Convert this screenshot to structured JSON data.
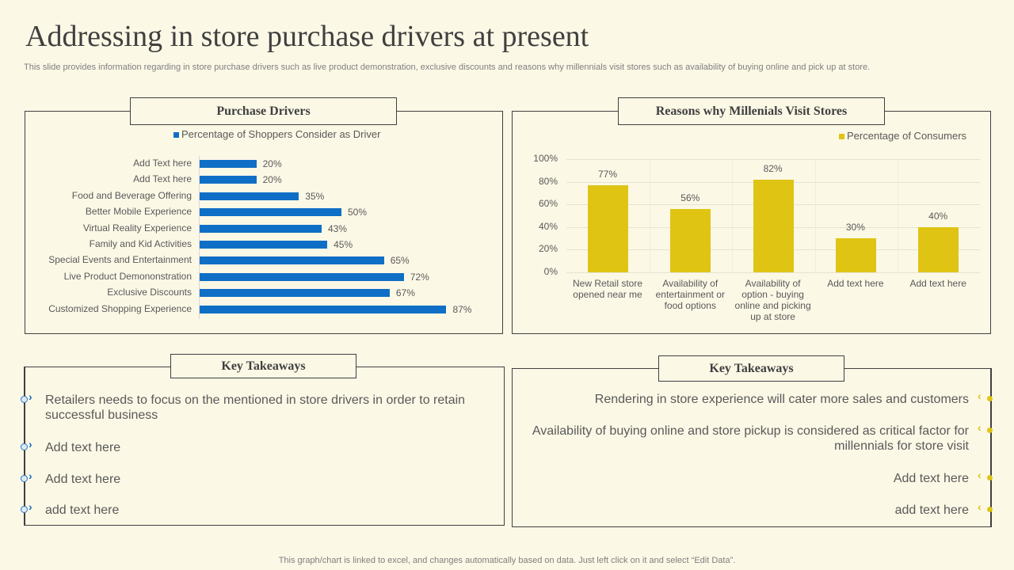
{
  "title": "Addressing in store purchase drivers at present",
  "subtitle": "This slide provides information regarding in store purchase drivers such as live product demonstration, exclusive discounts and reasons why millennials visit stores such as availability of buying online and pick up at store.",
  "footer": "This graph/chart is linked to excel, and changes automatically based on data. Just left click on it and select “Edit Data”.",
  "colors": {
    "blue": "#0f6fc6",
    "yellow": "#dfc414",
    "background": "#fcf8e6"
  },
  "chart_data": [
    {
      "type": "bar",
      "orientation": "horizontal",
      "title": "Purchase Drivers",
      "legend": "Percentage of Shoppers Consider as Driver",
      "legend_position": "top",
      "categories": [
        "Add Text here",
        "Add Text here",
        "Food and Beverage Offering",
        "Better Mobile Experience",
        "Virtual Reality Experience",
        "Family and Kid Activities",
        "Special Events and Entertainment",
        "Live Product Demononstration",
        "Exclusive Discounts",
        "Customized Shopping Experience"
      ],
      "values": [
        20,
        20,
        35,
        50,
        43,
        45,
        65,
        72,
        67,
        87
      ],
      "labels": [
        "20%",
        "20%",
        "35%",
        "50%",
        "43%",
        "45%",
        "65%",
        "72%",
        "67%",
        "87%"
      ]
    },
    {
      "type": "bar",
      "orientation": "vertical",
      "title": "Reasons why Millenials Visit Stores",
      "legend": "Percentage of Consumers",
      "legend_position": "top-right",
      "categories": [
        "New Retail store opened near me",
        "Availability of entertainment or food  options",
        "Availability of option - buying online and picking up at store",
        "Add text here",
        "Add text here"
      ],
      "values": [
        77,
        56,
        82,
        30,
        40
      ],
      "labels": [
        "77%",
        "56%",
        "82%",
        "30%",
        "40%"
      ],
      "ylim": [
        0,
        100
      ],
      "yticks": [
        "0%",
        "20%",
        "40%",
        "60%",
        "80%",
        "100%"
      ],
      "grid": true
    }
  ],
  "left_takeaways": {
    "title": "Key Takeaways",
    "items": [
      "Retailers needs to focus on the mentioned in store drivers in order to retain successful business",
      "Add text here",
      "Add text here",
      "add text here"
    ]
  },
  "right_takeaways": {
    "title": "Key Takeaways",
    "items": [
      "Rendering in store experience will cater more sales and customers",
      "Availability of buying online and store pickup is considered as critical factor for millennials for store visit",
      "Add text here",
      "add text here"
    ]
  }
}
